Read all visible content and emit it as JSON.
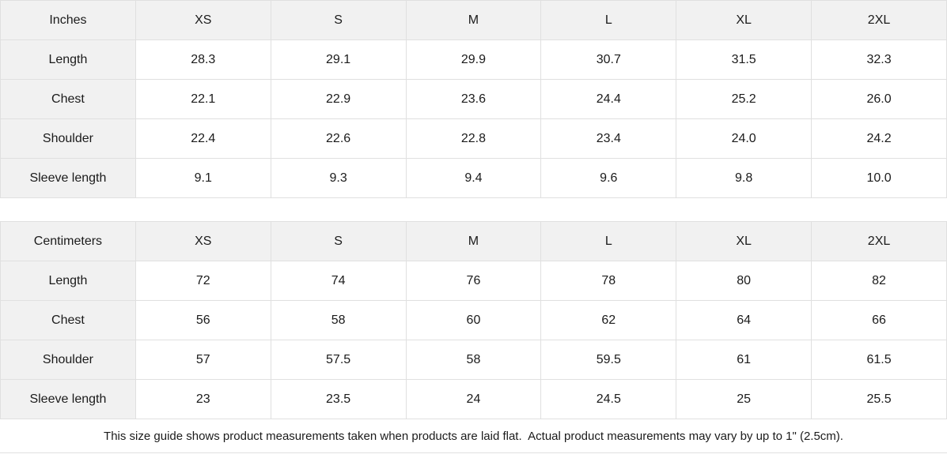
{
  "colors": {
    "header_bg": "#f1f1f1",
    "border": "#e0e0e0",
    "text": "#1b1b1b",
    "background": "#ffffff"
  },
  "sizes": [
    "XS",
    "S",
    "M",
    "L",
    "XL",
    "2XL"
  ],
  "inches": {
    "unit_label": "Inches",
    "rows": [
      {
        "label": "Length",
        "values": [
          "28.3",
          "29.1",
          "29.9",
          "30.7",
          "31.5",
          "32.3"
        ]
      },
      {
        "label": "Chest",
        "values": [
          "22.1",
          "22.9",
          "23.6",
          "24.4",
          "25.2",
          "26.0"
        ]
      },
      {
        "label": "Shoulder",
        "values": [
          "22.4",
          "22.6",
          "22.8",
          "23.4",
          "24.0",
          "24.2"
        ]
      },
      {
        "label": "Sleeve length",
        "values": [
          "9.1",
          "9.3",
          "9.4",
          "9.6",
          "9.8",
          "10.0"
        ]
      }
    ]
  },
  "centimeters": {
    "unit_label": "Centimeters",
    "rows": [
      {
        "label": "Length",
        "values": [
          "72",
          "74",
          "76",
          "78",
          "80",
          "82"
        ]
      },
      {
        "label": "Chest",
        "values": [
          "56",
          "58",
          "60",
          "62",
          "64",
          "66"
        ]
      },
      {
        "label": "Shoulder",
        "values": [
          "57",
          "57.5",
          "58",
          "59.5",
          "61",
          "61.5"
        ]
      },
      {
        "label": "Sleeve length",
        "values": [
          "23",
          "23.5",
          "24",
          "24.5",
          "25",
          "25.5"
        ]
      }
    ]
  },
  "footer": {
    "note": "This size guide shows product measurements taken when products are laid flat.  Actual product measurements may vary by up to 1\" (2.5cm)."
  }
}
